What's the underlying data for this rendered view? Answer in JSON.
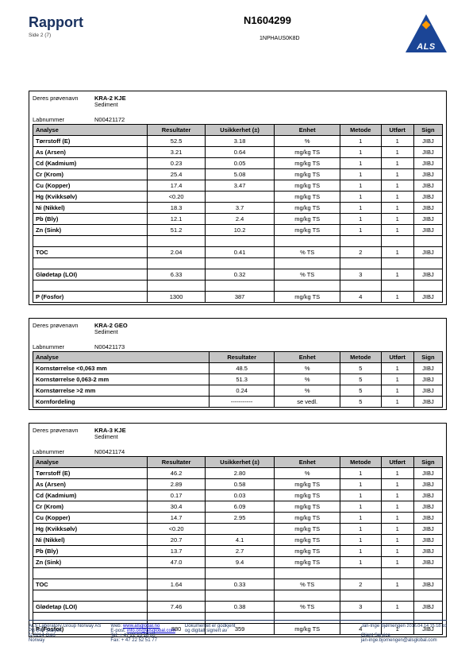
{
  "header": {
    "title": "Rapport",
    "page_label": "Side 2 (7)",
    "ref_no": "N1604299",
    "code": "1NPHAUS0K8D",
    "logo_text": "ALS"
  },
  "blocks": [
    {
      "sample_label": "Deres prøvenavn",
      "sample_name": "KRA-2 KJE",
      "sample_type": "Sediment",
      "labnum_label": "Labnummer",
      "labnum": "N00421172",
      "kind": "full",
      "headers": [
        "Analyse",
        "Resultater",
        "Usikkerhet (±)",
        "Enhet",
        "Metode",
        "Utført",
        "Sign"
      ],
      "rows": [
        [
          "Tørrstoff (E)",
          "52.5",
          "3.18",
          "%",
          "1",
          "1",
          "JIBJ"
        ],
        [
          "As (Arsen)",
          "3.21",
          "0.64",
          "mg/kg TS",
          "1",
          "1",
          "JIBJ"
        ],
        [
          "Cd (Kadmium)",
          "0.23",
          "0.05",
          "mg/kg TS",
          "1",
          "1",
          "JIBJ"
        ],
        [
          "Cr (Krom)",
          "25.4",
          "5.08",
          "mg/kg TS",
          "1",
          "1",
          "JIBJ"
        ],
        [
          "Cu (Kopper)",
          "17.4",
          "3.47",
          "mg/kg TS",
          "1",
          "1",
          "JIBJ"
        ],
        [
          "Hg (Kvikksølv)",
          "<0.20",
          "",
          "mg/kg TS",
          "1",
          "1",
          "JIBJ"
        ],
        [
          "Ni (Nikkel)",
          "18.3",
          "3.7",
          "mg/kg TS",
          "1",
          "1",
          "JIBJ"
        ],
        [
          "Pb (Bly)",
          "12.1",
          "2.4",
          "mg/kg TS",
          "1",
          "1",
          "JIBJ"
        ],
        [
          "Zn (Sink)",
          "51.2",
          "10.2",
          "mg/kg TS",
          "1",
          "1",
          "JIBJ"
        ],
        "gap",
        [
          "TOC",
          "2.04",
          "0.41",
          "% TS",
          "2",
          "1",
          "JIBJ"
        ],
        "gap",
        [
          "Glødetap (LOI)",
          "6.33",
          "0.32",
          "% TS",
          "3",
          "1",
          "JIBJ"
        ],
        "gap",
        [
          "P (Fosfor)",
          "1300",
          "387",
          "mg/kg TS",
          "4",
          "1",
          "JIBJ"
        ]
      ]
    },
    {
      "sample_label": "Deres prøvenavn",
      "sample_name": "KRA-2 GEO",
      "sample_type": "Sediment",
      "labnum_label": "Labnummer",
      "labnum": "N00421173",
      "kind": "short",
      "headers": [
        "Analyse",
        "Resultater",
        "Enhet",
        "Metode",
        "Utført",
        "Sign"
      ],
      "rows": [
        [
          "Kornstørrelse <0,063 mm",
          "48.5",
          "%",
          "5",
          "1",
          "JIBJ"
        ],
        [
          "Kornstørrelse 0,063-2 mm",
          "51.3",
          "%",
          "5",
          "1",
          "JIBJ"
        ],
        [
          "Kornstørrelse >2 mm",
          "0.24",
          "%",
          "5",
          "1",
          "JIBJ"
        ],
        [
          "Kornfordeling",
          "-----------",
          "se vedl.",
          "5",
          "1",
          "JIBJ"
        ]
      ]
    },
    {
      "sample_label": "Deres prøvenavn",
      "sample_name": "KRA-3 KJE",
      "sample_type": "Sediment",
      "labnum_label": "Labnummer",
      "labnum": "N00421174",
      "kind": "full",
      "headers": [
        "Analyse",
        "Resultater",
        "Usikkerhet (±)",
        "Enhet",
        "Metode",
        "Utført",
        "Sign"
      ],
      "rows": [
        [
          "Tørrstoff (E)",
          "46.2",
          "2.80",
          "%",
          "1",
          "1",
          "JIBJ"
        ],
        [
          "As (Arsen)",
          "2.89",
          "0.58",
          "mg/kg TS",
          "1",
          "1",
          "JIBJ"
        ],
        [
          "Cd (Kadmium)",
          "0.17",
          "0.03",
          "mg/kg TS",
          "1",
          "1",
          "JIBJ"
        ],
        [
          "Cr (Krom)",
          "30.4",
          "6.09",
          "mg/kg TS",
          "1",
          "1",
          "JIBJ"
        ],
        [
          "Cu (Kopper)",
          "14.7",
          "2.95",
          "mg/kg TS",
          "1",
          "1",
          "JIBJ"
        ],
        [
          "Hg (Kvikksølv)",
          "<0.20",
          "",
          "mg/kg TS",
          "1",
          "1",
          "JIBJ"
        ],
        [
          "Ni (Nikkel)",
          "20.7",
          "4.1",
          "mg/kg TS",
          "1",
          "1",
          "JIBJ"
        ],
        [
          "Pb (Bly)",
          "13.7",
          "2.7",
          "mg/kg TS",
          "1",
          "1",
          "JIBJ"
        ],
        [
          "Zn (Sink)",
          "47.0",
          "9.4",
          "mg/kg TS",
          "1",
          "1",
          "JIBJ"
        ],
        "gap",
        [
          "TOC",
          "1.64",
          "0.33",
          "% TS",
          "2",
          "1",
          "JIBJ"
        ],
        "gap",
        [
          "Glødetap (LOI)",
          "7.46",
          "0.38",
          "% TS",
          "3",
          "1",
          "JIBJ"
        ],
        "gap",
        [
          "P (Fosfor)",
          "880",
          "359",
          "mg/kg TS",
          "4",
          "1",
          "JIBJ"
        ]
      ]
    }
  ],
  "footer": {
    "col1": [
      "ALS Laboratory Group Norway AS",
      "PB 643 Skøyen",
      "N-0214 Oslo",
      "Norway"
    ],
    "col2_labels": [
      "Web:",
      "E-post:",
      "Tel:",
      "Fax:"
    ],
    "col2_vals": [
      "www.alsglobal.no",
      "info.on@alsglobal.com",
      "+ 47 22 13 18 00",
      "+ 47 22 52 51 77"
    ],
    "col3": [
      "Dokumentet er godkjent",
      "og digitalt signert av"
    ],
    "col4_name": "Jan-Inge Bjørnengen",
    "col4_ts": "2016.04.14 15:18:10",
    "col4_role": "Client Service",
    "col4_email": "jan-inge.bjornengen@alsglobal.com"
  },
  "columns": {
    "full": [
      "28%",
      "14%",
      "17%",
      "16%",
      "10%",
      "8%",
      "7%"
    ],
    "short": [
      "43%",
      "16%",
      "16%",
      "10%",
      "8%",
      "7%"
    ]
  }
}
